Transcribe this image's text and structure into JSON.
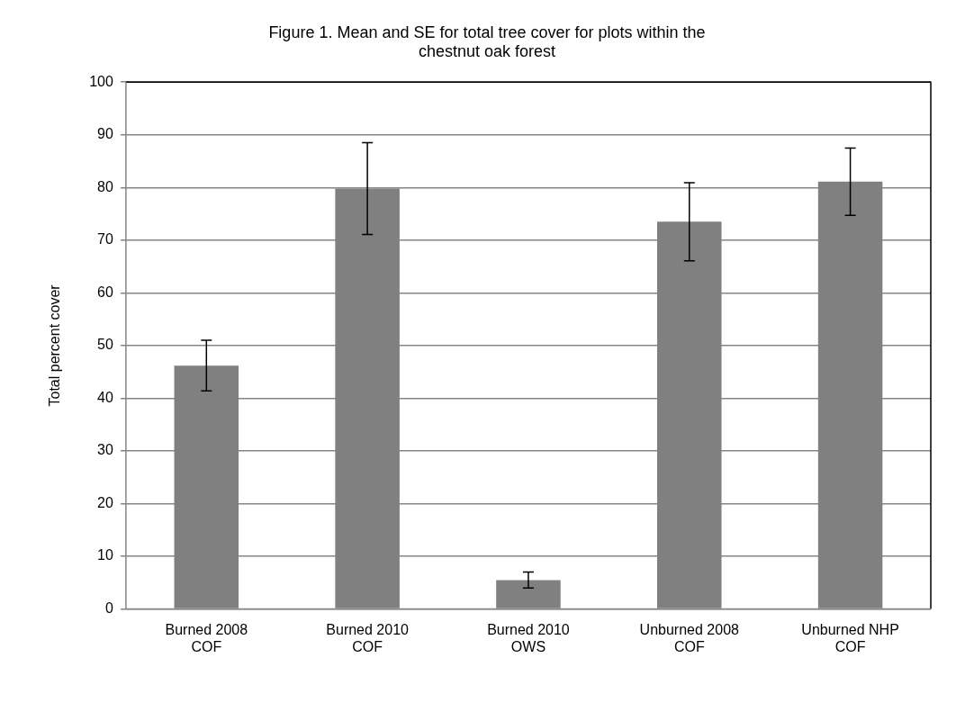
{
  "chart_data": {
    "type": "bar",
    "title": "Figure 1. Mean and SE for total tree cover for plots within the chestnut oak forest",
    "ylabel": "Total percent cover",
    "categories": [
      "Burned 2008 COF",
      "Burned 2010 COF",
      "Burned 2010 OWS",
      "Unburned 2008 COF",
      "Unburned NHP COF"
    ],
    "values": [
      46.2,
      79.8,
      5.5,
      73.5,
      81.1
    ],
    "errors": [
      4.8,
      8.7,
      1.5,
      7.4,
      6.4
    ],
    "color": "#808080",
    "ylim": [
      0,
      100
    ],
    "yticks": [
      0,
      10,
      20,
      30,
      40,
      50,
      60,
      70,
      80,
      90,
      100
    ],
    "grid": "y"
  }
}
